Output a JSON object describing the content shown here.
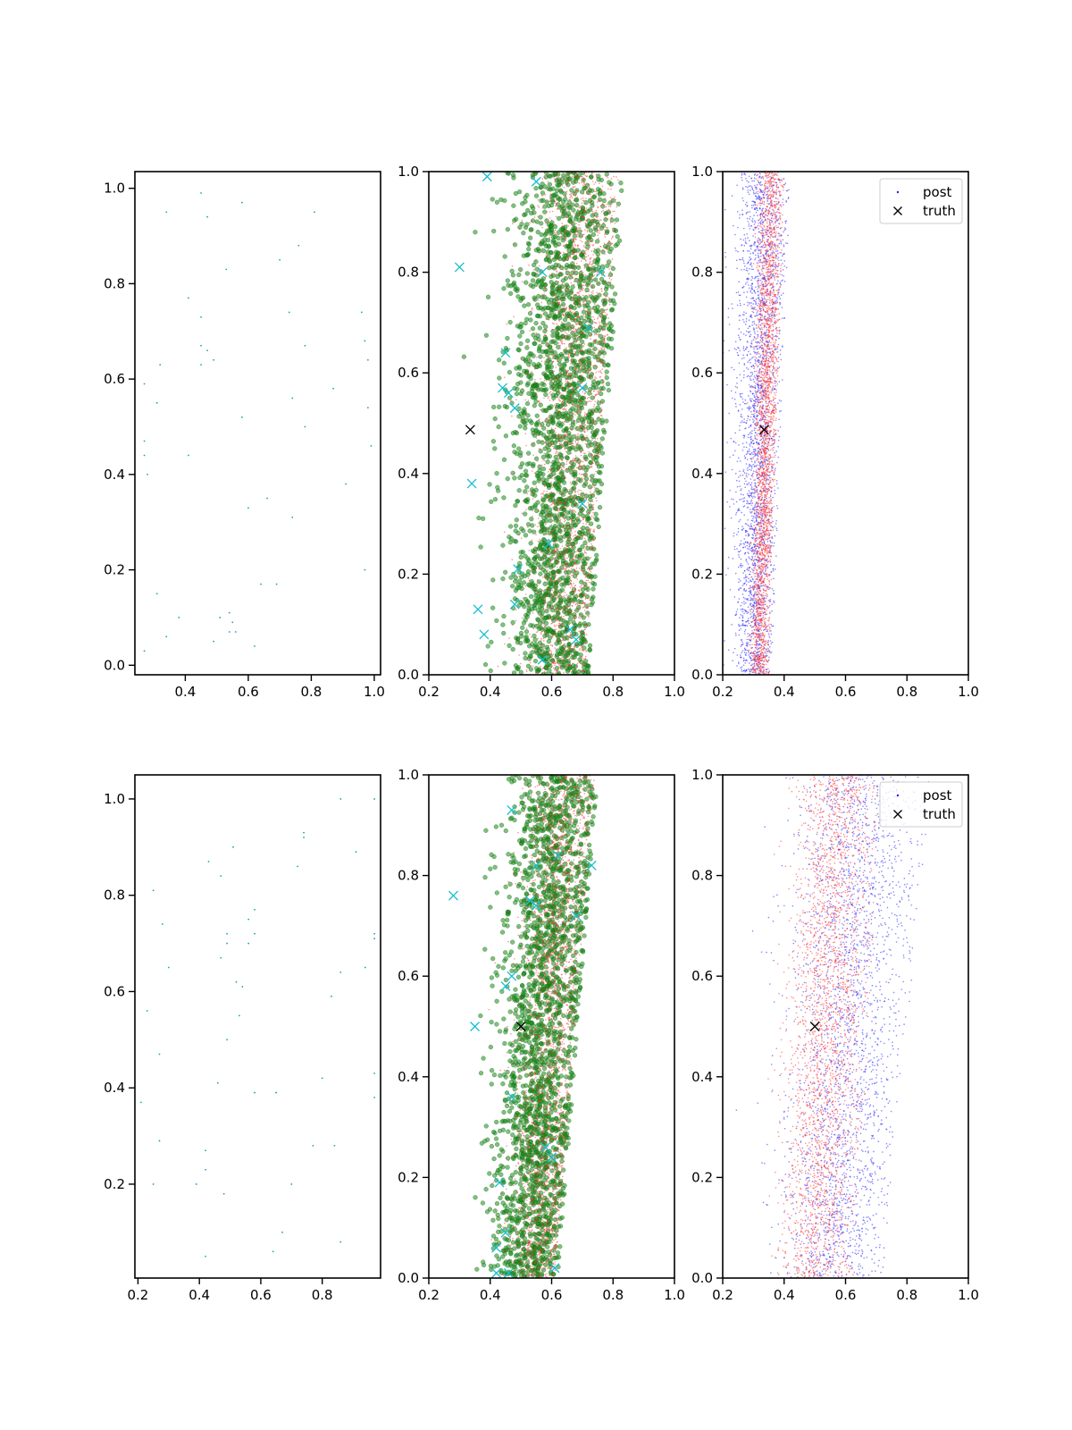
{
  "colors": {
    "cyan_dots": "#20a0b0",
    "green_points": "#1a8a1a",
    "red_points": "#ff3030",
    "blue_points": "#2020ff",
    "cyan_cross": "#17becf",
    "truth_cross": "#000000",
    "axis": "#000000"
  },
  "chart_data": [
    {
      "id": "top-left",
      "type": "scatter",
      "xlim": [
        0.24,
        1.02
      ],
      "ylim": [
        -0.02,
        1.035
      ],
      "xticks": [
        0.4,
        0.6,
        0.8,
        1.0
      ],
      "xtick_labels": [
        "0.4",
        "0.6",
        "0.8",
        "1.0"
      ],
      "yticks": [
        0.0,
        0.2,
        0.4,
        0.6,
        0.8,
        1.0
      ],
      "ytick_labels": [
        "0.0",
        "0.2",
        "0.4",
        "0.6",
        "0.8",
        "1.0"
      ],
      "series": [
        {
          "role": "samples",
          "color_key": "cyan_dots",
          "points": [
            [
              0.45,
              0.99
            ],
            [
              0.58,
              0.97
            ],
            [
              0.34,
              0.95
            ],
            [
              0.47,
              0.94
            ],
            [
              0.81,
              0.95
            ],
            [
              0.76,
              0.88
            ],
            [
              0.7,
              0.85
            ],
            [
              0.53,
              0.83
            ],
            [
              0.96,
              0.74
            ],
            [
              0.41,
              0.77
            ],
            [
              0.73,
              0.74
            ],
            [
              0.45,
              0.73
            ],
            [
              0.97,
              0.68
            ],
            [
              0.45,
              0.67
            ],
            [
              0.47,
              0.66
            ],
            [
              0.78,
              0.67
            ],
            [
              0.49,
              0.64
            ],
            [
              0.45,
              0.63
            ],
            [
              0.32,
              0.63
            ],
            [
              0.98,
              0.64
            ],
            [
              0.27,
              0.59
            ],
            [
              0.74,
              0.56
            ],
            [
              0.87,
              0.58
            ],
            [
              0.31,
              0.55
            ],
            [
              0.98,
              0.54
            ],
            [
              0.58,
              0.52
            ],
            [
              0.78,
              0.5
            ],
            [
              0.27,
              0.47
            ],
            [
              0.99,
              0.46
            ],
            [
              0.27,
              0.44
            ],
            [
              0.41,
              0.44
            ],
            [
              0.28,
              0.4
            ],
            [
              0.91,
              0.38
            ],
            [
              0.66,
              0.35
            ],
            [
              0.6,
              0.33
            ],
            [
              0.74,
              0.31
            ],
            [
              0.97,
              0.2
            ],
            [
              0.64,
              0.17
            ],
            [
              0.69,
              0.17
            ],
            [
              0.31,
              0.15
            ],
            [
              0.38,
              0.1
            ],
            [
              0.54,
              0.11
            ],
            [
              0.51,
              0.1
            ],
            [
              0.55,
              0.09
            ],
            [
              0.34,
              0.06
            ],
            [
              0.54,
              0.07
            ],
            [
              0.56,
              0.07
            ],
            [
              0.49,
              0.05
            ],
            [
              0.62,
              0.04
            ],
            [
              0.27,
              0.03
            ]
          ]
        }
      ]
    },
    {
      "id": "top-middle",
      "type": "scatter",
      "xlim": [
        0.2,
        1.0
      ],
      "ylim": [
        0.0,
        1.0
      ],
      "xticks": [
        0.2,
        0.4,
        0.6,
        0.8,
        1.0
      ],
      "xtick_labels": [
        "0.2",
        "0.4",
        "0.6",
        "0.8",
        "1.0"
      ],
      "yticks": [
        0.0,
        0.2,
        0.4,
        0.6,
        0.8,
        1.0
      ],
      "ytick_labels": [
        "0.0",
        "0.2",
        "0.4",
        "0.6",
        "0.8",
        "1.0"
      ],
      "series": [
        {
          "role": "green-cloud",
          "color_key": "green_points",
          "count": 2200,
          "x_center_bottom": 0.6,
          "x_center_top": 0.66,
          "x_spread_bottom": 0.13,
          "x_spread_top": 0.16,
          "x_max_bottom": 0.72,
          "x_max_top": 0.84,
          "x_min": 0.2
        },
        {
          "role": "red-cloud",
          "color_key": "red_points",
          "count": 2600,
          "x_center_bottom": 0.63,
          "x_center_top": 0.7,
          "x_spread_bottom": 0.1,
          "x_spread_top": 0.12,
          "x_max_bottom": 0.71,
          "x_max_top": 0.82,
          "x_min": 0.2
        },
        {
          "role": "cyan-crosses",
          "color_key": "cyan_cross",
          "points": [
            [
              0.39,
              0.99
            ],
            [
              0.55,
              0.98
            ],
            [
              0.3,
              0.81
            ],
            [
              0.57,
              0.8
            ],
            [
              0.76,
              0.8
            ],
            [
              0.72,
              0.69
            ],
            [
              0.45,
              0.64
            ],
            [
              0.44,
              0.57
            ],
            [
              0.46,
              0.56
            ],
            [
              0.48,
              0.53
            ],
            [
              0.7,
              0.57
            ],
            [
              0.34,
              0.38
            ],
            [
              0.7,
              0.34
            ],
            [
              0.59,
              0.26
            ],
            [
              0.49,
              0.21
            ],
            [
              0.48,
              0.14
            ],
            [
              0.36,
              0.13
            ],
            [
              0.38,
              0.08
            ],
            [
              0.57,
              0.03
            ],
            [
              0.68,
              0.07
            ],
            [
              0.66,
              0.09
            ]
          ]
        },
        {
          "role": "truth",
          "color_key": "truth_cross",
          "points": [
            [
              0.335,
              0.487
            ]
          ]
        }
      ]
    },
    {
      "id": "top-right",
      "type": "scatter",
      "xlim": [
        0.2,
        1.0
      ],
      "ylim": [
        0.0,
        1.0
      ],
      "xticks": [
        0.2,
        0.4,
        0.6,
        0.8,
        1.0
      ],
      "xtick_labels": [
        "0.2",
        "0.4",
        "0.6",
        "0.8",
        "1.0"
      ],
      "yticks": [
        0.0,
        0.2,
        0.4,
        0.6,
        0.8,
        1.0
      ],
      "ytick_labels": [
        "0.0",
        "0.2",
        "0.4",
        "0.6",
        "0.8",
        "1.0"
      ],
      "legend": {
        "placement": "top-right",
        "entries": [
          {
            "label": "post",
            "marker": "dot",
            "color_key": "blue_points"
          },
          {
            "label": "truth",
            "marker": "x",
            "color_key": "truth_cross"
          }
        ]
      },
      "series": [
        {
          "role": "blue-cloud",
          "color_key": "blue_points",
          "count": 2600,
          "x_center_bottom": 0.3,
          "x_center_top": 0.33,
          "x_spread_bottom": 0.05,
          "x_spread_top": 0.07,
          "x_max_bottom": 0.36,
          "x_max_top": 0.42,
          "x_min": 0.2
        },
        {
          "role": "red-cloud",
          "color_key": "red_points",
          "count": 2600,
          "x_center_bottom": 0.32,
          "x_center_top": 0.36,
          "x_spread_bottom": 0.025,
          "x_spread_top": 0.035,
          "x_max_bottom": 0.35,
          "x_max_top": 0.4,
          "x_min": 0.2
        },
        {
          "role": "truth",
          "color_key": "truth_cross",
          "points": [
            [
              0.335,
              0.487
            ]
          ]
        }
      ]
    },
    {
      "id": "bottom-left",
      "type": "scatter",
      "xlim": [
        0.19,
        0.99
      ],
      "ylim": [
        0.005,
        1.05
      ],
      "xticks": [
        0.2,
        0.4,
        0.6,
        0.8
      ],
      "xtick_labels": [
        "0.2",
        "0.4",
        "0.6",
        "0.8"
      ],
      "yticks": [
        0.2,
        0.4,
        0.6,
        0.8,
        1.0
      ],
      "ytick_labels": [
        "0.2",
        "0.4",
        "0.6",
        "0.8",
        "1.0"
      ],
      "series": [
        {
          "role": "samples",
          "color_key": "cyan_dots",
          "points": [
            [
              0.86,
              1.0
            ],
            [
              0.97,
              1.0
            ],
            [
              0.74,
              0.93
            ],
            [
              0.74,
              0.92
            ],
            [
              0.51,
              0.9
            ],
            [
              0.72,
              0.86
            ],
            [
              0.43,
              0.87
            ],
            [
              0.91,
              0.89
            ],
            [
              0.47,
              0.84
            ],
            [
              0.25,
              0.81
            ],
            [
              0.58,
              0.77
            ],
            [
              0.56,
              0.75
            ],
            [
              0.28,
              0.74
            ],
            [
              0.49,
              0.72
            ],
            [
              0.58,
              0.72
            ],
            [
              0.97,
              0.72
            ],
            [
              0.49,
              0.7
            ],
            [
              0.97,
              0.71
            ],
            [
              0.56,
              0.7
            ],
            [
              0.47,
              0.67
            ],
            [
              0.3,
              0.65
            ],
            [
              0.94,
              0.65
            ],
            [
              0.86,
              0.64
            ],
            [
              0.52,
              0.62
            ],
            [
              0.54,
              0.61
            ],
            [
              0.83,
              0.59
            ],
            [
              0.23,
              0.56
            ],
            [
              0.53,
              0.55
            ],
            [
              0.49,
              0.5
            ],
            [
              0.27,
              0.47
            ],
            [
              0.97,
              0.43
            ],
            [
              0.8,
              0.42
            ],
            [
              0.46,
              0.41
            ],
            [
              0.58,
              0.39
            ],
            [
              0.65,
              0.39
            ],
            [
              0.97,
              0.38
            ],
            [
              0.21,
              0.37
            ],
            [
              0.27,
              0.29
            ],
            [
              0.77,
              0.28
            ],
            [
              0.84,
              0.28
            ],
            [
              0.42,
              0.27
            ],
            [
              0.42,
              0.23
            ],
            [
              0.25,
              0.2
            ],
            [
              0.39,
              0.2
            ],
            [
              0.7,
              0.2
            ],
            [
              0.48,
              0.18
            ],
            [
              0.67,
              0.1
            ],
            [
              0.86,
              0.08
            ],
            [
              0.64,
              0.06
            ],
            [
              0.42,
              0.05
            ]
          ]
        }
      ]
    },
    {
      "id": "bottom-middle",
      "type": "scatter",
      "xlim": [
        0.2,
        1.0
      ],
      "ylim": [
        0.0,
        1.0
      ],
      "xticks": [
        0.2,
        0.4,
        0.6,
        0.8,
        1.0
      ],
      "xtick_labels": [
        "0.2",
        "0.4",
        "0.6",
        "0.8",
        "1.0"
      ],
      "yticks": [
        0.0,
        0.2,
        0.4,
        0.6,
        0.8,
        1.0
      ],
      "ytick_labels": [
        "0.0",
        "0.2",
        "0.4",
        "0.6",
        "0.8",
        "1.0"
      ],
      "series": [
        {
          "role": "green-cloud",
          "color_key": "green_points",
          "count": 2200,
          "x_center_bottom": 0.52,
          "x_center_top": 0.62,
          "x_spread_bottom": 0.1,
          "x_spread_top": 0.13,
          "x_max_bottom": 0.62,
          "x_max_top": 0.75,
          "x_min": 0.2
        },
        {
          "role": "red-cloud",
          "color_key": "red_points",
          "count": 2600,
          "x_center_bottom": 0.55,
          "x_center_top": 0.64,
          "x_spread_bottom": 0.08,
          "x_spread_top": 0.1,
          "x_max_bottom": 0.61,
          "x_max_top": 0.74,
          "x_min": 0.2
        },
        {
          "role": "cyan-crosses",
          "color_key": "cyan_cross",
          "points": [
            [
              0.47,
              0.93
            ],
            [
              0.73,
              0.82
            ],
            [
              0.62,
              0.84
            ],
            [
              0.55,
              0.82
            ],
            [
              0.28,
              0.76
            ],
            [
              0.53,
              0.75
            ],
            [
              0.55,
              0.74
            ],
            [
              0.68,
              0.72
            ],
            [
              0.47,
              0.6
            ],
            [
              0.45,
              0.58
            ],
            [
              0.35,
              0.5
            ],
            [
              0.47,
              0.36
            ],
            [
              0.58,
              0.26
            ],
            [
              0.6,
              0.24
            ],
            [
              0.43,
              0.19
            ],
            [
              0.45,
              0.09
            ],
            [
              0.42,
              0.06
            ],
            [
              0.61,
              0.02
            ],
            [
              0.42,
              0.01
            ],
            [
              0.46,
              0.01
            ]
          ]
        },
        {
          "role": "truth",
          "color_key": "truth_cross",
          "points": [
            [
              0.5,
              0.5
            ]
          ]
        }
      ]
    },
    {
      "id": "bottom-right",
      "type": "scatter",
      "xlim": [
        0.2,
        1.0
      ],
      "ylim": [
        0.0,
        1.0
      ],
      "xticks": [
        0.2,
        0.4,
        0.6,
        0.8,
        1.0
      ],
      "xtick_labels": [
        "0.2",
        "0.4",
        "0.6",
        "0.8",
        "1.0"
      ],
      "yticks": [
        0.0,
        0.2,
        0.4,
        0.6,
        0.8,
        1.0
      ],
      "ytick_labels": [
        "0.0",
        "0.2",
        "0.4",
        "0.6",
        "0.8",
        "1.0"
      ],
      "legend": {
        "placement": "top-right",
        "entries": [
          {
            "label": "post",
            "marker": "dot",
            "color_key": "blue_points"
          },
          {
            "label": "truth",
            "marker": "x",
            "color_key": "truth_cross"
          }
        ]
      },
      "series": [
        {
          "role": "blue-cloud",
          "color_key": "blue_points",
          "count": 2600,
          "x_center_bottom": 0.56,
          "x_center_top": 0.66,
          "x_spread_bottom": 0.15,
          "x_spread_top": 0.17,
          "x_max_bottom": 0.72,
          "x_max_top": 0.88,
          "x_min": 0.2
        },
        {
          "role": "red-cloud",
          "color_key": "red_points",
          "count": 2600,
          "x_center_bottom": 0.5,
          "x_center_top": 0.57,
          "x_spread_bottom": 0.1,
          "x_spread_top": 0.11,
          "x_max_bottom": 0.63,
          "x_max_top": 0.72,
          "x_min": 0.2
        },
        {
          "role": "truth",
          "color_key": "truth_cross",
          "points": [
            [
              0.5,
              0.5
            ]
          ]
        }
      ]
    }
  ]
}
